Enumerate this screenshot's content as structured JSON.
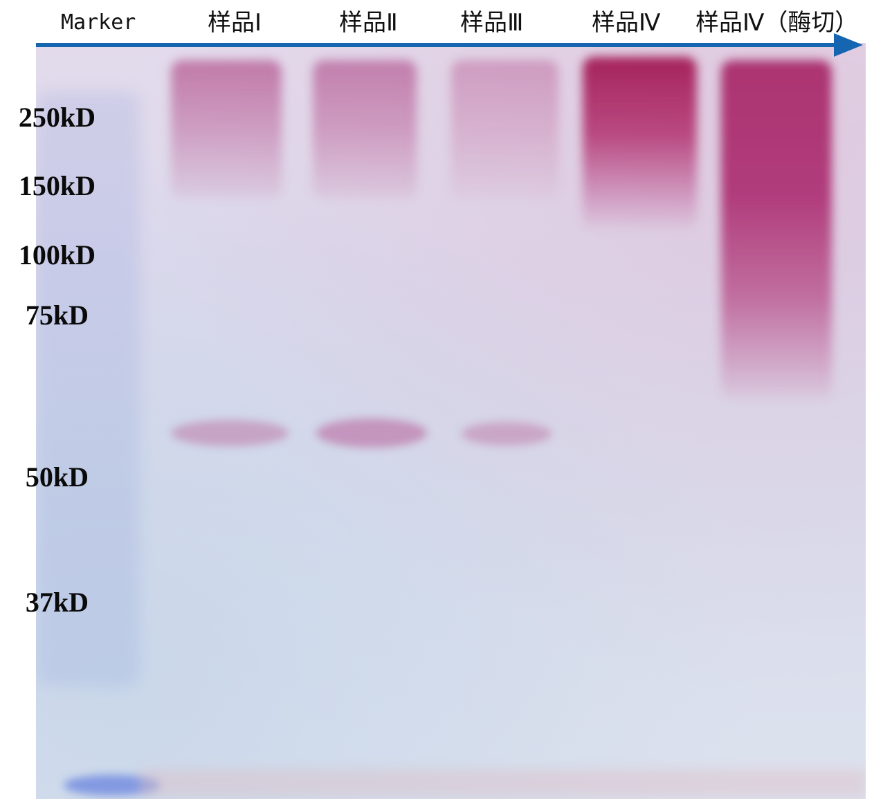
{
  "lane_headers": {
    "marker": "Marker",
    "sample_1": "样品Ⅰ",
    "sample_2": "样品Ⅱ",
    "sample_3": "样品Ⅲ",
    "sample_4": "样品Ⅳ",
    "sample_4_digest": "样品Ⅳ（酶切）"
  },
  "marker_bands": [
    "250kD",
    "150kD",
    "100kD",
    "75kD",
    "50kD",
    "37kD"
  ],
  "colors": {
    "arrow": "#1565b0",
    "stain": "#b0306e",
    "gel_background": "#dcdcec"
  },
  "icons": {
    "direction_arrow": "right-arrow-icon"
  }
}
